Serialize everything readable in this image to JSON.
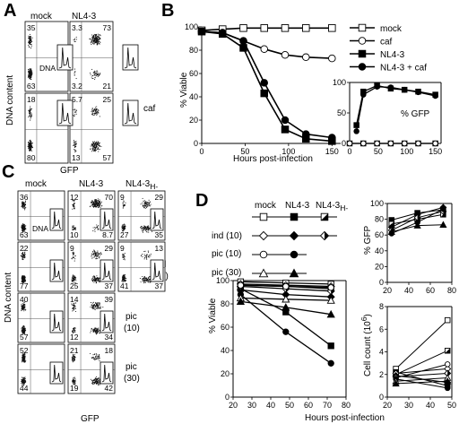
{
  "panels": {
    "A": {
      "label": "A",
      "cols": [
        "mock",
        "NL4-3"
      ],
      "row_labels": [
        "",
        "caf"
      ],
      "ylabel": "DNA content",
      "xlabel": "GFP",
      "inset_label": "DNA",
      "quadrants": [
        [
          "35",
          "",
          "63",
          ""
        ],
        [
          "3.3",
          "73",
          "3.2",
          "21"
        ],
        [
          "18",
          "",
          "80",
          ""
        ],
        [
          "5.7",
          "25",
          "13",
          "57"
        ]
      ]
    },
    "B": {
      "label": "B",
      "ylabel": "% Viable",
      "xlabel": "Hours post-infection",
      "legend": [
        "mock",
        "caf",
        "NL4-3",
        "NL4-3 + caf"
      ],
      "inset_label": "% GFP",
      "y_ticks": [
        "0",
        "20",
        "40",
        "60",
        "80",
        "100"
      ],
      "x_ticks": [
        "0",
        "50",
        "100",
        "150"
      ],
      "inset_y_ticks": [
        "0",
        "50",
        "100"
      ],
      "inset_x_ticks": [
        "0",
        "50",
        "100",
        "150"
      ]
    },
    "C": {
      "label": "C",
      "cols": [
        "mock",
        "NL4-3",
        "NL4-3"
      ],
      "col3_sub": "H-",
      "ylabel": "DNA content",
      "xlabel": "GFP",
      "inset_label": "DNA",
      "row_labels": [
        [
          "",
          ""
        ],
        [
          "ind",
          "(10)"
        ],
        [
          "pic",
          "(10)"
        ],
        [
          "pic",
          "(30)"
        ]
      ],
      "quadrants": [
        [
          [
            "36",
            "",
            "63",
            ""
          ],
          [
            "12",
            "70",
            "10",
            "8.7"
          ],
          [
            "9",
            "29",
            "27",
            "35"
          ]
        ],
        [
          [
            "22",
            "",
            "77",
            ""
          ],
          [
            "9",
            "29",
            "25",
            "37"
          ],
          [
            "9",
            "13",
            "41",
            "37"
          ]
        ],
        [
          [
            "40",
            "",
            "57",
            ""
          ],
          [
            "14",
            "39",
            "12",
            "34"
          ]
        ],
        [
          [
            "52",
            "",
            "44",
            ""
          ],
          [
            "21",
            "18",
            "19",
            "42"
          ]
        ]
      ]
    },
    "D": {
      "label": "D",
      "cols": [
        "mock",
        "NL4-3",
        "NL4-3"
      ],
      "col3_sub": "H-",
      "legend_rows": [
        "",
        "ind (10)",
        "pic (10)",
        "pic (30)"
      ],
      "ylabel": "% Viable",
      "xlabel": "Hours post-infection",
      "gfp_ylabel": "% GFP",
      "count_ylabel": "Cell count (10",
      "count_ylabel_sup": "6",
      "count_ylabel_end": ")",
      "y_ticks": [
        "0",
        "20",
        "40",
        "60",
        "80",
        "100"
      ],
      "x_ticks": [
        "20",
        "30",
        "40",
        "50",
        "60",
        "70",
        "80"
      ],
      "gfp_y_ticks": [
        "0",
        "20",
        "40",
        "60",
        "80",
        "100"
      ],
      "gfp_x_ticks": [
        "20",
        "40",
        "60",
        "80"
      ],
      "count_y_ticks": [
        "0",
        "2",
        "4",
        "6",
        "8"
      ],
      "count_x_ticks": [
        "20",
        "30",
        "40",
        "50"
      ]
    }
  },
  "chart_data": [
    {
      "type": "line",
      "panel": "B",
      "xlabel": "Hours post-infection",
      "ylabel": "% Viable",
      "xlim": [
        0,
        160
      ],
      "ylim": [
        0,
        100
      ],
      "series": [
        {
          "name": "mock",
          "marker": "open-square",
          "x": [
            0,
            24,
            48,
            72,
            96,
            120,
            150
          ],
          "y": [
            97,
            98,
            99,
            99,
            99,
            99,
            99
          ]
        },
        {
          "name": "caf",
          "marker": "open-circle",
          "x": [
            0,
            24,
            48,
            72,
            96,
            120,
            150
          ],
          "y": [
            96,
            95,
            88,
            81,
            76,
            74,
            73
          ]
        },
        {
          "name": "NL4-3",
          "marker": "filled-square",
          "x": [
            0,
            24,
            48,
            72,
            96,
            120,
            150
          ],
          "y": [
            96,
            94,
            82,
            43,
            12,
            4,
            2
          ]
        },
        {
          "name": "NL4-3 + caf",
          "marker": "filled-circle",
          "x": [
            0,
            24,
            48,
            72,
            96,
            120,
            150
          ],
          "y": [
            96,
            95,
            88,
            52,
            20,
            8,
            5
          ]
        }
      ]
    },
    {
      "type": "line",
      "panel": "B-inset",
      "ylabel": "% GFP",
      "xlim": [
        0,
        160
      ],
      "ylim": [
        0,
        100
      ],
      "series": [
        {
          "name": "mock",
          "marker": "open-square",
          "x": [
            0,
            24,
            48,
            72,
            96,
            120,
            150
          ],
          "y": [
            0,
            0,
            0,
            0,
            0,
            0,
            0
          ]
        },
        {
          "name": "caf",
          "marker": "open-circle",
          "x": [
            0,
            24,
            48,
            72,
            96,
            120,
            150
          ],
          "y": [
            0,
            0,
            0,
            0,
            0,
            0,
            0
          ]
        },
        {
          "name": "NL4-3",
          "marker": "filled-square",
          "x": [
            12,
            24,
            48,
            72,
            96,
            120,
            150
          ],
          "y": [
            30,
            85,
            95,
            90,
            88,
            85,
            80
          ]
        },
        {
          "name": "NL4-3 + caf",
          "marker": "filled-circle",
          "x": [
            12,
            24,
            48,
            72,
            96,
            120,
            150
          ],
          "y": [
            20,
            80,
            93,
            92,
            88,
            84,
            78
          ]
        }
      ]
    },
    {
      "type": "line",
      "panel": "D-viable",
      "xlabel": "Hours post-infection",
      "ylabel": "% Viable",
      "xlim": [
        20,
        80
      ],
      "ylim": [
        0,
        100
      ],
      "series": [
        {
          "name": "mock",
          "marker": "open-square",
          "x": [
            24,
            48,
            72
          ],
          "y": [
            99,
            98,
            97
          ]
        },
        {
          "name": "NL4-3",
          "marker": "filled-square",
          "x": [
            24,
            48,
            72
          ],
          "y": [
            93,
            73,
            44
          ]
        },
        {
          "name": "NL4-3 H-",
          "marker": "half-square",
          "x": [
            24,
            48,
            72
          ],
          "y": [
            96,
            95,
            93
          ]
        },
        {
          "name": "mock ind (10)",
          "marker": "open-diamond",
          "x": [
            24,
            48,
            72
          ],
          "y": [
            97,
            96,
            95
          ]
        },
        {
          "name": "NL4-3 ind (10)",
          "marker": "filled-diamond",
          "x": [
            24,
            48,
            72
          ],
          "y": [
            92,
            88,
            86
          ]
        },
        {
          "name": "NL4-3 H- ind (10)",
          "marker": "half-diamond",
          "x": [
            24,
            48,
            72
          ],
          "y": [
            95,
            93,
            91
          ]
        },
        {
          "name": "mock pic (10)",
          "marker": "open-circle",
          "x": [
            24,
            48,
            72
          ],
          "y": [
            96,
            95,
            94
          ]
        },
        {
          "name": "NL4-3 pic (10)",
          "marker": "filled-circle",
          "x": [
            24,
            48,
            72
          ],
          "y": [
            88,
            56,
            29
          ]
        },
        {
          "name": "mock pic (30)",
          "marker": "open-triangle",
          "x": [
            24,
            48,
            72
          ],
          "y": [
            85,
            84,
            83
          ]
        },
        {
          "name": "NL4-3 pic (30)",
          "marker": "filled-triangle",
          "x": [
            24,
            48,
            72
          ],
          "y": [
            82,
            77,
            71
          ]
        }
      ]
    },
    {
      "type": "line",
      "panel": "D-gfp",
      "ylabel": "% GFP",
      "xlim": [
        20,
        80
      ],
      "ylim": [
        0,
        100
      ],
      "series": [
        {
          "name": "NL4-3",
          "marker": "filled-square",
          "x": [
            24,
            48,
            72
          ],
          "y": [
            79,
            88,
            92
          ]
        },
        {
          "name": "NL4-3 H-",
          "marker": "half-square",
          "x": [
            24,
            48,
            72
          ],
          "y": [
            74,
            80,
            86
          ]
        },
        {
          "name": "NL4-3 ind (10)",
          "marker": "filled-diamond",
          "x": [
            24,
            48,
            72
          ],
          "y": [
            70,
            86,
            95
          ]
        },
        {
          "name": "NL4-3 H- ind (10)",
          "marker": "half-diamond",
          "x": [
            24,
            48,
            72
          ],
          "y": [
            66,
            82,
            90
          ]
        },
        {
          "name": "NL4-3 pic (10)",
          "marker": "filled-circle",
          "x": [
            24,
            48,
            72
          ],
          "y": [
            62,
            76,
            93
          ]
        },
        {
          "name": "NL4-3 pic (30)",
          "marker": "filled-triangle",
          "x": [
            24,
            48,
            72
          ],
          "y": [
            64,
            72,
            73
          ]
        }
      ]
    },
    {
      "type": "line",
      "panel": "D-count",
      "ylabel": "Cell count (10^6)",
      "xlim": [
        20,
        50
      ],
      "ylim": [
        0,
        8
      ],
      "series": [
        {
          "name": "mock",
          "marker": "open-square",
          "x": [
            24,
            48
          ],
          "y": [
            2.5,
            6.8
          ]
        },
        {
          "name": "NL4-3",
          "marker": "filled-square",
          "x": [
            24,
            48
          ],
          "y": [
            2.2,
            1.0
          ]
        },
        {
          "name": "NL4-3 H-",
          "marker": "half-square",
          "x": [
            24,
            48
          ],
          "y": [
            2.0,
            4.1
          ]
        },
        {
          "name": "mock ind (10)",
          "marker": "open-diamond",
          "x": [
            24,
            48
          ],
          "y": [
            2.1,
            2.5
          ]
        },
        {
          "name": "NL4-3 ind (10)",
          "marker": "filled-diamond",
          "x": [
            24,
            48
          ],
          "y": [
            1.9,
            1.3
          ]
        },
        {
          "name": "NL4-3 H- ind (10)",
          "marker": "half-diamond",
          "x": [
            24,
            48
          ],
          "y": [
            1.8,
            2.1
          ]
        },
        {
          "name": "mock pic (10)",
          "marker": "open-circle",
          "x": [
            24,
            48
          ],
          "y": [
            1.7,
            2.9
          ]
        },
        {
          "name": "NL4-3 pic (10)",
          "marker": "filled-circle",
          "x": [
            24,
            48
          ],
          "y": [
            1.6,
            0.8
          ]
        },
        {
          "name": "mock pic (30)",
          "marker": "open-triangle",
          "x": [
            24,
            48
          ],
          "y": [
            1.4,
            1.7
          ]
        },
        {
          "name": "NL4-3 pic (30)",
          "marker": "filled-triangle",
          "x": [
            24,
            48
          ],
          "y": [
            1.2,
            1.4
          ]
        }
      ]
    }
  ]
}
